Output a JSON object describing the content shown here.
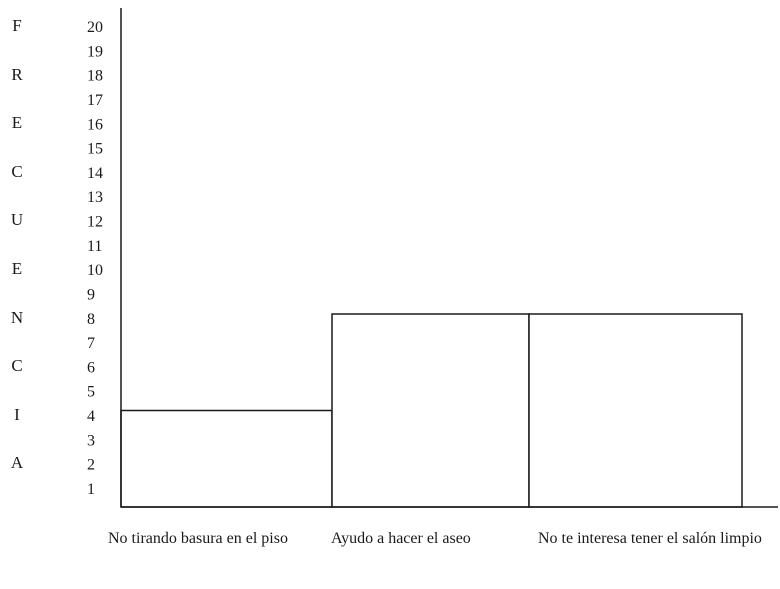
{
  "chart_data": {
    "type": "bar",
    "title": "",
    "xlabel": "",
    "ylabel": "FRECUENCIA",
    "categories": [
      "No tirando basura en el piso",
      "Ayudo a hacer el aseo",
      "No te interesa tener el salón limpio"
    ],
    "values": [
      4,
      8,
      8
    ],
    "ylim": [
      0,
      20
    ],
    "yticks": [
      "1",
      "2",
      "3",
      "4",
      "5",
      "6",
      "7",
      "8",
      "9",
      "10",
      "11",
      "12",
      "13",
      "14",
      "15",
      "16",
      "17",
      "18",
      "19",
      "20"
    ],
    "grid": false,
    "bar_fill": "#ffffff",
    "bar_stroke": "#1a1a1a"
  }
}
